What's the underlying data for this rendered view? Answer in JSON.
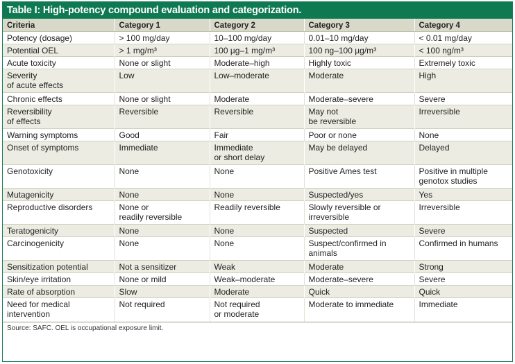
{
  "table": {
    "title": "Table I: High-potency compound evaluation and categorization.",
    "headers": [
      "Criteria",
      "Category 1",
      "Category 2",
      "Category 3",
      "Category 4"
    ],
    "rows": [
      [
        "Potency (dosage)",
        "> 100 mg/day",
        "10–100 mg/day",
        "0.01–10 mg/day",
        "< 0.01 mg/day"
      ],
      [
        "Potential OEL",
        "> 1 mg/m³",
        "100 µg–1 mg/m³",
        "100 ng–100 µg/m³",
        "< 100 ng/m³"
      ],
      [
        "Acute toxicity",
        "None or slight",
        "Moderate–high",
        "Highly toxic",
        "Extremely toxic"
      ],
      [
        "Severity\nof acute effects",
        "Low",
        "Low–moderate",
        "Moderate",
        "High"
      ],
      [
        "Chronic effects",
        "None or slight",
        "Moderate",
        "Moderate–severe",
        "Severe"
      ],
      [
        "Reversibility\nof effects",
        "Reversible",
        "Reversible",
        "May not\nbe reversible",
        "Irreversible"
      ],
      [
        "Warning symptoms",
        "Good",
        "Fair",
        "Poor or none",
        "None"
      ],
      [
        "Onset of symptoms",
        "Immediate",
        "Immediate\nor short delay",
        "May be delayed",
        "Delayed"
      ],
      [
        "Genotoxicity",
        "None",
        "None",
        "Positive Ames test",
        "Positive in multiple\ngenotox studies"
      ],
      [
        "Mutagenicity",
        "None",
        "None",
        "Suspected/yes",
        "Yes"
      ],
      [
        "Reproductive disorders",
        "None or\nreadily reversible",
        "Readily reversible",
        "Slowly reversible or\nirreversible",
        "Irreversible"
      ],
      [
        "Teratogenicity",
        "None",
        "None",
        "Suspected",
        "Severe"
      ],
      [
        "Carcinogenicity",
        "None",
        "None",
        "Suspect/confirmed in\nanimals",
        "Confirmed in humans"
      ],
      [
        "Sensitization potential",
        "Not a sensitizer",
        "Weak",
        "Moderate",
        "Strong"
      ],
      [
        "Skin/eye irritation",
        "None or mild",
        "Weak–moderate",
        "Moderate–severe",
        "Severe"
      ],
      [
        "Rate of absorption",
        "Slow",
        "Moderate",
        "Quick",
        "Quick"
      ],
      [
        "Need for medical\nintervention",
        "Not required",
        "Not required\nor moderate",
        "Moderate to immediate",
        "Immediate"
      ]
    ],
    "source": "Source: SAFC. OEL is occupational exposure limit."
  },
  "colors": {
    "title_bar": "#0f7a52",
    "header_bg": "#d9d9c9",
    "stripe_bg": "#ecece2"
  }
}
